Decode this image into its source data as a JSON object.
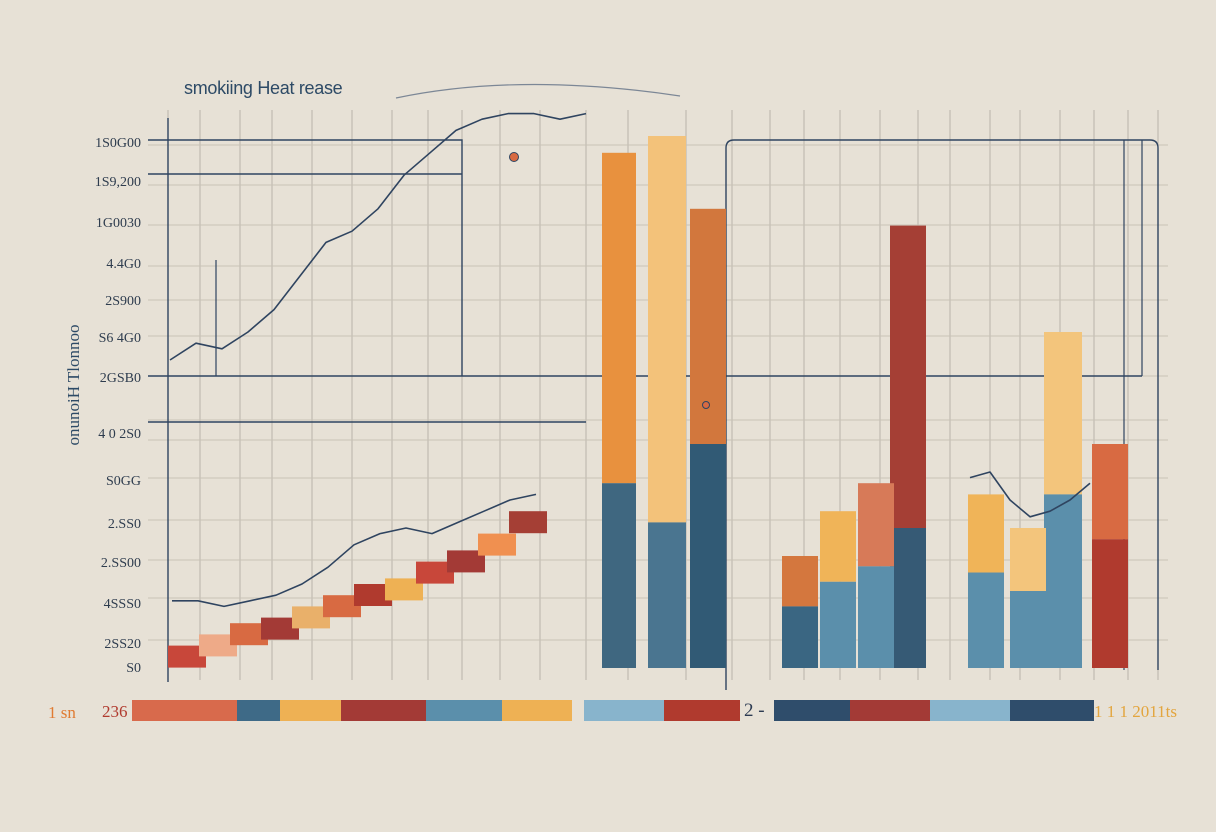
{
  "chart_data": {
    "type": "bar",
    "title": "smokiing Heat rease",
    "ylabel": "onunoiH Tlonnoo",
    "y_ticks": [
      "1S0G00",
      "1S9,200",
      "1G0030",
      "4.4G0",
      "2S900",
      "S6 4G0",
      "2GSB0",
      "4 0 2S0",
      "S0GG",
      "2.SS0",
      "2.SS00",
      "4SSS0",
      "2SS20",
      "S0"
    ],
    "tall_bars": [
      {
        "name": "bar-a",
        "top": 92,
        "split": 33,
        "segments": [
          "#e8913e",
          "#3f6780"
        ]
      },
      {
        "name": "bar-b",
        "top": 95,
        "split": 26,
        "segments": [
          "#f3c27a",
          "#4a7590"
        ]
      },
      {
        "name": "bar-c",
        "top": 82,
        "split": 40,
        "segments": [
          "#d2773d",
          "#315a75"
        ]
      },
      {
        "name": "bar-d",
        "top": 79,
        "split": 25,
        "segments": [
          "#a53f35",
          "#365a75"
        ]
      },
      {
        "name": "bar-e",
        "top": 60,
        "split": 31,
        "segments": [
          "#f3c57c",
          "#5b8fab"
        ]
      },
      {
        "name": "bar-f",
        "top": 40,
        "split": 23,
        "segments": [
          "#d86a42",
          "#b03a2e"
        ]
      }
    ],
    "short_bars": [
      {
        "name": "bar-g",
        "value": 20
      },
      {
        "name": "bar-h",
        "value": 28
      },
      {
        "name": "bar-i",
        "value": 33
      },
      {
        "name": "bar-j",
        "value": 31
      },
      {
        "name": "bar-k",
        "value": 25
      }
    ],
    "stair_steps": [
      4,
      6,
      8,
      9,
      11,
      13,
      15,
      16,
      19,
      21,
      24,
      28
    ],
    "line_left_upper": [
      55,
      58,
      57,
      60,
      64,
      70,
      76,
      78,
      82,
      88,
      92,
      96,
      98,
      99,
      99,
      98,
      99
    ],
    "line_left_lower": [
      12,
      12,
      11,
      12,
      13,
      15,
      18,
      22,
      24,
      25,
      24,
      26,
      28,
      30,
      31
    ],
    "line_right": [
      34,
      35,
      30,
      27,
      28,
      30,
      33
    ],
    "legend": {
      "left_label": "1 sn",
      "left_value": "236",
      "mid_label": "2 -",
      "right_label": "1 1 1 2011ts",
      "colors": [
        "#d86a4c",
        "#3e6a87",
        "#eeb154",
        "#a33a36",
        "#5b8fab",
        "#eeb154",
        "#88b4cc",
        "#b03a2e",
        "#2f4d6b",
        "#a33a36",
        "#88b4cc",
        "#2f4d6b"
      ]
    }
  }
}
